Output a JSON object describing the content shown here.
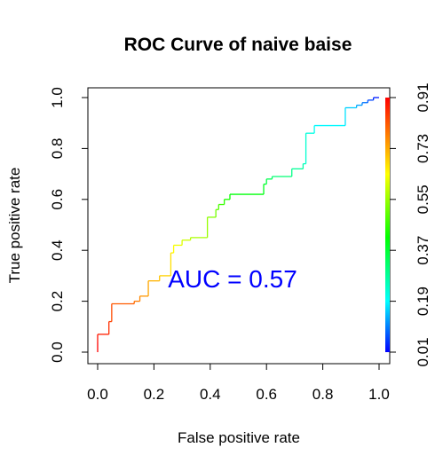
{
  "chart_data": {
    "type": "line",
    "title": "ROC Curve of naive baise",
    "xlabel": "False positive rate",
    "ylabel": "True positive rate",
    "xlim": [
      0,
      1
    ],
    "ylim": [
      0,
      1
    ],
    "grid": false,
    "x_ticks": [
      "0.0",
      "0.2",
      "0.4",
      "0.6",
      "0.8",
      "1.0"
    ],
    "y_ticks": [
      "0.0",
      "0.2",
      "0.4",
      "0.6",
      "0.8",
      "1.0"
    ],
    "colorbar": {
      "position": "right",
      "range": [
        0.01,
        0.91
      ],
      "tick_labels": [
        "0.01",
        "0.19",
        "0.37",
        "0.55",
        "0.73",
        "0.91"
      ]
    },
    "annotation": {
      "text": "AUC = 0.57",
      "color": "#0000ff",
      "x": 0.25,
      "y": 0.29
    },
    "series": [
      {
        "x": [
          0.0,
          0.0,
          0.0,
          0.04,
          0.04,
          0.05,
          0.05,
          0.13,
          0.13,
          0.15,
          0.15,
          0.18,
          0.18,
          0.22,
          0.22,
          0.26,
          0.26,
          0.27,
          0.27,
          0.3,
          0.3,
          0.33,
          0.33,
          0.39,
          0.39,
          0.42,
          0.42,
          0.43,
          0.43,
          0.45,
          0.45,
          0.47,
          0.47,
          0.59,
          0.59,
          0.6,
          0.6,
          0.62,
          0.62,
          0.69,
          0.69,
          0.73,
          0.73,
          0.74,
          0.74,
          0.77,
          0.77,
          0.88,
          0.88,
          0.92,
          0.92,
          0.94,
          0.94,
          0.96,
          0.96,
          0.98,
          0.98,
          1.0
        ],
        "y": [
          0.0,
          0.04,
          0.07,
          0.07,
          0.12,
          0.12,
          0.19,
          0.19,
          0.2,
          0.2,
          0.22,
          0.22,
          0.28,
          0.28,
          0.3,
          0.3,
          0.39,
          0.39,
          0.42,
          0.42,
          0.44,
          0.44,
          0.45,
          0.45,
          0.53,
          0.53,
          0.56,
          0.56,
          0.58,
          0.58,
          0.6,
          0.6,
          0.62,
          0.62,
          0.66,
          0.66,
          0.68,
          0.68,
          0.69,
          0.69,
          0.72,
          0.72,
          0.74,
          0.74,
          0.86,
          0.86,
          0.89,
          0.89,
          0.96,
          0.96,
          0.97,
          0.97,
          0.98,
          0.98,
          0.99,
          0.99,
          1.0,
          1.0
        ]
      }
    ]
  }
}
